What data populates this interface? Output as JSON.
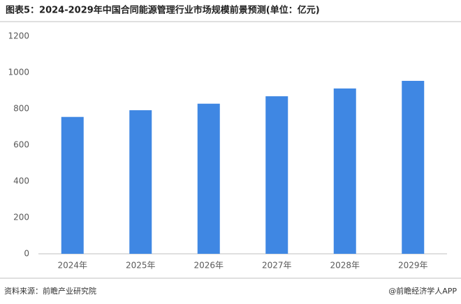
{
  "chart_data": {
    "type": "bar",
    "title": "图表5：2024-2029年中国合同能源管理行业市场规模前景预测(单位：亿元)",
    "categories": [
      "2024年",
      "2025年",
      "2026年",
      "2027年",
      "2028年",
      "2029年"
    ],
    "values": [
      755,
      792,
      828,
      869,
      912,
      954
    ],
    "color": "#3f87e3",
    "ylim": [
      0,
      1200
    ],
    "yticks": [
      0,
      200,
      400,
      600,
      800,
      1000,
      1200
    ],
    "grid": false,
    "source": "资料来源：前瞻产业研究院",
    "credit": "@前瞻经济学人APP"
  }
}
